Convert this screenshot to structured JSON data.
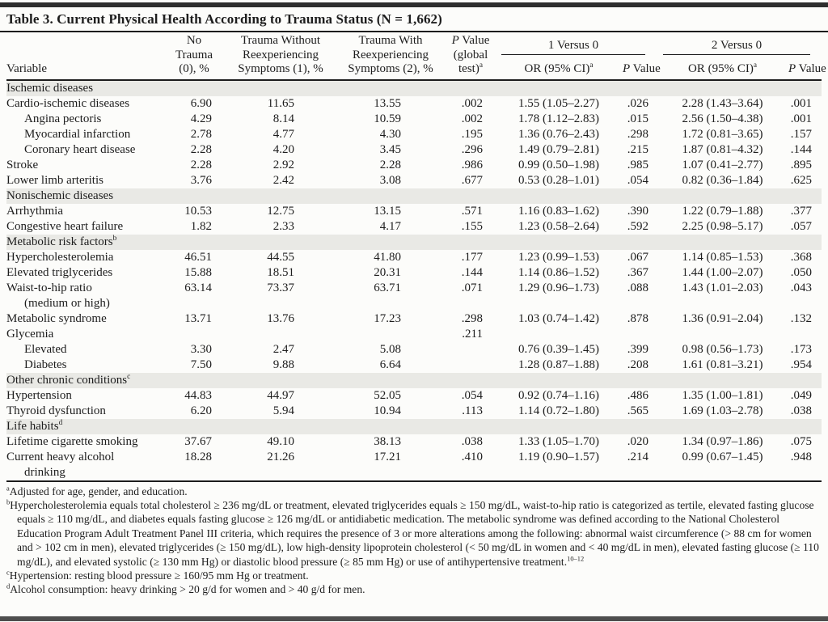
{
  "title": "Table 3. Current Physical Health According to Trauma Status (N = 1,662)",
  "colors": {
    "section_bg": "#e9e9e5",
    "rule": "#1c1c1c",
    "bar_top": "#2e2e2e",
    "bar_bottom": "#4e4e4e",
    "page_bg": "#fcfcfa"
  },
  "table": {
    "headers": {
      "variable": "Variable",
      "no_trauma": "No\nTrauma\n(0), %",
      "trauma_without": "Trauma Without\nReexperiencing\nSymptoms (1), %",
      "trauma_with": "Trauma With\nReexperiencing\nSymptoms (2), %",
      "p_global": {
        "italic": "P",
        "text": " Value\n(global\ntest)",
        "sup": "a"
      },
      "versus1": "1 Versus 0",
      "versus2": "2 Versus 0",
      "or_ci": {
        "text": "OR (95% CI)",
        "sup": "a"
      },
      "p_value": {
        "italic": "P",
        "text": " Value"
      }
    },
    "rows": [
      {
        "section": true,
        "label": "Ischemic diseases"
      },
      {
        "label": "Cardio-ischemic diseases",
        "values": [
          "6.90",
          "11.65",
          "13.55",
          ".002",
          "1.55 (1.05–2.27)",
          ".026",
          "2.28 (1.43–3.64)",
          ".001"
        ]
      },
      {
        "label": "Angina pectoris",
        "indent": true,
        "values": [
          "4.29",
          "8.14",
          "10.59",
          ".002",
          "1.78 (1.12–2.83)",
          ".015",
          "2.56 (1.50–4.38)",
          ".001"
        ]
      },
      {
        "label": "Myocardial infarction",
        "indent": true,
        "values": [
          "2.78",
          "4.77",
          "4.30",
          ".195",
          "1.36 (0.76–2.43)",
          ".298",
          "1.72 (0.81–3.65)",
          ".157"
        ]
      },
      {
        "label": "Coronary heart disease",
        "indent": true,
        "values": [
          "2.28",
          "4.20",
          "3.45",
          ".296",
          "1.49 (0.79–2.81)",
          ".215",
          "1.87 (0.81–4.32)",
          ".144"
        ]
      },
      {
        "label": "Stroke",
        "values": [
          "2.28",
          "2.92",
          "2.28",
          ".986",
          "0.99 (0.50–1.98)",
          ".985",
          "1.07 (0.41–2.77)",
          ".895"
        ]
      },
      {
        "label": "Lower limb arteritis",
        "values": [
          "3.76",
          "2.42",
          "3.08",
          ".677",
          "0.53 (0.28–1.01)",
          ".054",
          "0.82 (0.36–1.84)",
          ".625"
        ]
      },
      {
        "section": true,
        "label": "Nonischemic diseases"
      },
      {
        "label": "Arrhythmia",
        "values": [
          "10.53",
          "12.75",
          "13.15",
          ".571",
          "1.16 (0.83–1.62)",
          ".390",
          "1.22 (0.79–1.88)",
          ".377"
        ]
      },
      {
        "label": "Congestive heart failure",
        "values": [
          "1.82",
          "2.33",
          "4.17",
          ".155",
          "1.23 (0.58–2.64)",
          ".592",
          "2.25 (0.98–5.17)",
          ".057"
        ]
      },
      {
        "section": true,
        "label": "Metabolic risk factors",
        "sup": "b"
      },
      {
        "label": "Hypercholesterolemia",
        "values": [
          "46.51",
          "44.55",
          "41.80",
          ".177",
          "1.23 (0.99–1.53)",
          ".067",
          "1.14 (0.85–1.53)",
          ".368"
        ]
      },
      {
        "label": "Elevated triglycerides",
        "values": [
          "15.88",
          "18.51",
          "20.31",
          ".144",
          "1.14 (0.86–1.52)",
          ".367",
          "1.44 (1.00–2.07)",
          ".050"
        ]
      },
      {
        "label": "Waist-to-hip ratio\n(medium or high)",
        "values": [
          "63.14",
          "73.37",
          "63.71",
          ".071",
          "1.29 (0.96–1.73)",
          ".088",
          "1.43 (1.01–2.03)",
          ".043"
        ]
      },
      {
        "label": "Metabolic syndrome",
        "values": [
          "13.71",
          "13.76",
          "17.23",
          ".298",
          "1.03 (0.74–1.42)",
          ".878",
          "1.36 (0.91–2.04)",
          ".132"
        ]
      },
      {
        "label": "Glycemia",
        "values": [
          "",
          "",
          "",
          ".211",
          "",
          "",
          "",
          ""
        ]
      },
      {
        "label": "Elevated",
        "indent": true,
        "values": [
          "3.30",
          "2.47",
          "5.08",
          "",
          "0.76 (0.39–1.45)",
          ".399",
          "0.98 (0.56–1.73)",
          ".173"
        ]
      },
      {
        "label": "Diabetes",
        "indent": true,
        "values": [
          "7.50",
          "9.88",
          "6.64",
          "",
          "1.28 (0.87–1.88)",
          ".208",
          "1.61 (0.81–3.21)",
          ".954"
        ]
      },
      {
        "section": true,
        "label": "Other chronic conditions",
        "sup": "c"
      },
      {
        "label": "Hypertension",
        "values": [
          "44.83",
          "44.97",
          "52.05",
          ".054",
          "0.92 (0.74–1.16)",
          ".486",
          "1.35 (1.00–1.81)",
          ".049"
        ]
      },
      {
        "label": "Thyroid dysfunction",
        "values": [
          "6.20",
          "5.94",
          "10.94",
          ".113",
          "1.14 (0.72–1.80)",
          ".565",
          "1.69 (1.03–2.78)",
          ".038"
        ]
      },
      {
        "section": true,
        "label": "Life habits",
        "sup": "d"
      },
      {
        "label": "Lifetime cigarette smoking",
        "values": [
          "37.67",
          "49.10",
          "38.13",
          ".038",
          "1.33 (1.05–1.70)",
          ".020",
          "1.34 (0.97–1.86)",
          ".075"
        ]
      },
      {
        "label": "Current heavy alcohol\ndrinking",
        "values": [
          "18.28",
          "21.26",
          "17.21",
          ".410",
          "1.19 (0.90–1.57)",
          ".214",
          "0.99 (0.67–1.45)",
          ".948"
        ]
      }
    ]
  },
  "footnotes": [
    {
      "marker": "a",
      "text": "Adjusted for age, gender, and education."
    },
    {
      "marker": "b",
      "text": "Hypercholesterolemia equals total cholesterol ≥ 236 mg/dL or treatment, elevated triglycerides equals ≥ 150 mg/dL, waist-to-hip ratio is categorized as tertile, elevated fasting glucose equals ≥ 110 mg/dL, and diabetes equals fasting glucose ≥ 126 mg/dL or antidiabetic medication. The metabolic syndrome was defined according to the National Cholesterol Education Program Adult Treatment Panel III criteria, which requires the presence of 3 or more alterations among the following: abnormal waist circumference (> 88 cm for women and > 102 cm in men), elevated triglycerides (≥ 150 mg/dL), low high-density lipoprotein cholesterol (< 50 mg/dL in women and < 40 mg/dL in men), elevated fasting glucose (≥ 110 mg/dL), and elevated systolic (≥ 130 mm Hg) or diastolic blood pressure (≥ 85 mm Hg) or use of antihypertensive treatment.",
      "ref": "10–12"
    },
    {
      "marker": "c",
      "text": "Hypertension: resting blood pressure ≥ 160/95 mm Hg or treatment."
    },
    {
      "marker": "d",
      "text": "Alcohol consumption: heavy drinking > 20 g/d for women and > 40 g/d for men."
    }
  ]
}
